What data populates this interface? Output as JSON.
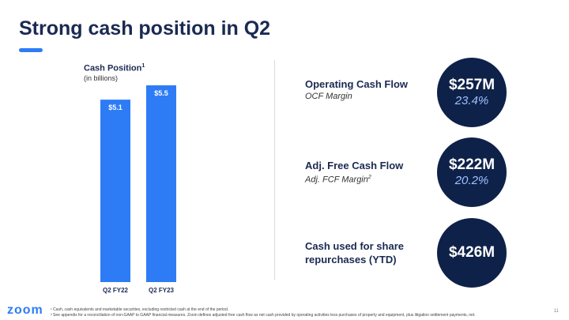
{
  "page": {
    "title": "Strong cash position in Q2",
    "brand_color": "#2d7cf6",
    "navy_color": "#0e2149",
    "page_number": "11"
  },
  "chart_data": {
    "type": "bar",
    "title": "Cash Position",
    "title_footnote": "1",
    "subtitle": "(in billions)",
    "categories": [
      "Q2 FY22",
      "Q2 FY23"
    ],
    "values": [
      5.1,
      5.5
    ],
    "value_labels": [
      "$5.1",
      "$5.5"
    ],
    "ylim": [
      0,
      5.5
    ],
    "grid": false,
    "bar_color": "#2d7cf6"
  },
  "metrics": [
    {
      "name": "Operating Cash Flow",
      "note": "OCF Margin",
      "note_footnote": "",
      "value": "$257M",
      "percent": "23.4%"
    },
    {
      "name": "Adj. Free Cash Flow",
      "note": "Adj. FCF Margin",
      "note_footnote": "2",
      "value": "$222M",
      "percent": "20.2%"
    },
    {
      "name_line1": "Cash used for share",
      "name_line2": "repurchases (YTD)",
      "value": "$426M"
    }
  ],
  "footer": {
    "logo_text": "zoom",
    "footnote_1": "¹ Cash, cash equivalents and marketable securities, excluding restricted cash at the end of the period.",
    "footnote_2": "² See appendix for a reconciliation of non-GAAP to GAAP financial measures. Zoom defines adjusted free cash flow as net cash provided by operating activities less purchases of property and equipment, plus litigation settlement payments, net."
  }
}
